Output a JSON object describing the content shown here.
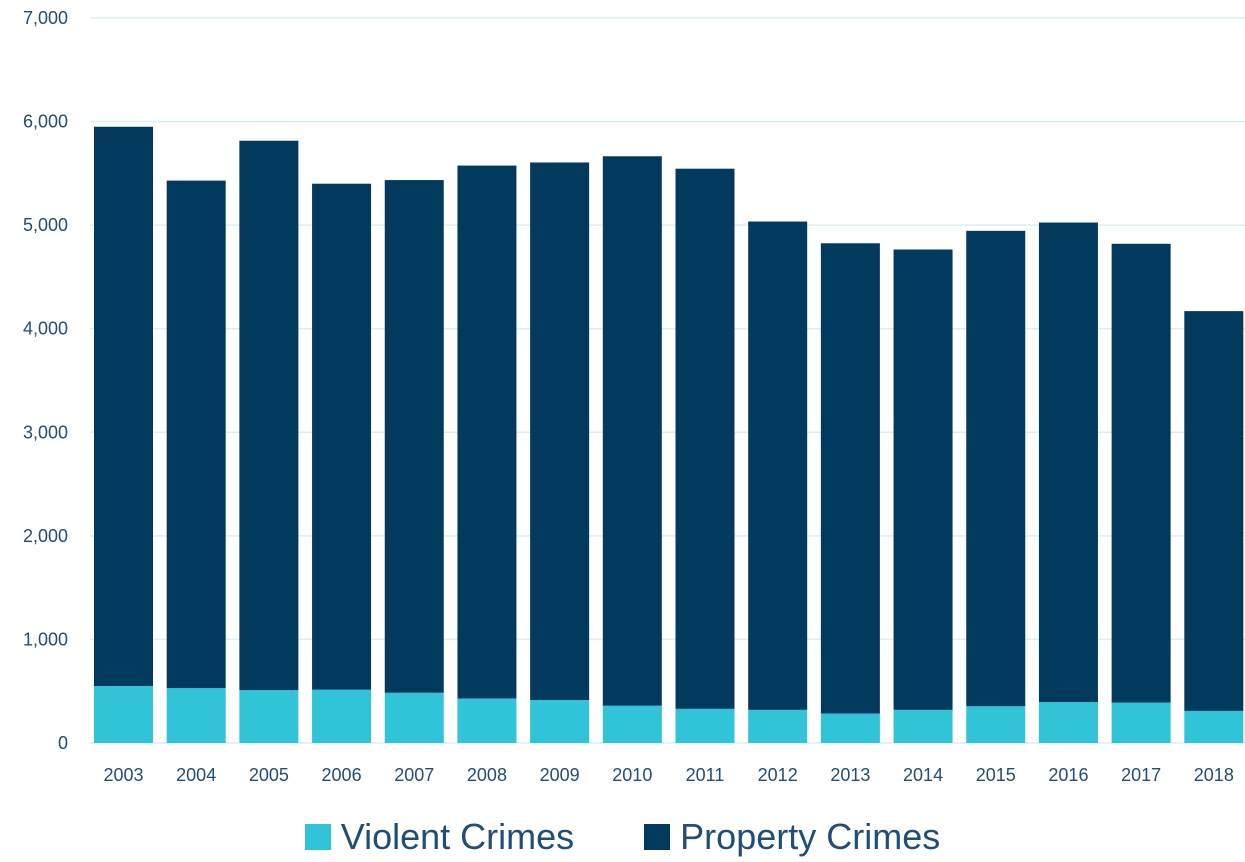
{
  "chart_data": {
    "type": "bar",
    "stacked": true,
    "categories": [
      "2003",
      "2004",
      "2005",
      "2006",
      "2007",
      "2008",
      "2009",
      "2010",
      "2011",
      "2012",
      "2013",
      "2014",
      "2015",
      "2016",
      "2017",
      "2018"
    ],
    "series": [
      {
        "name": "Violent Crimes",
        "color": "#31c3d7",
        "values": [
          550,
          530,
          510,
          515,
          485,
          430,
          415,
          360,
          330,
          320,
          285,
          320,
          355,
          395,
          390,
          310
        ]
      },
      {
        "name": "Property Crimes",
        "color": "#023a5e",
        "values": [
          5400,
          4900,
          5305,
          4885,
          4950,
          5145,
          5190,
          5305,
          5215,
          4715,
          4540,
          4445,
          4590,
          4630,
          4430,
          3860
        ]
      }
    ],
    "ylim": [
      0,
      7000
    ],
    "yticks": [
      0,
      1000,
      2000,
      3000,
      4000,
      5000,
      6000,
      7000
    ],
    "ytick_labels": [
      "0",
      "1,000",
      "2,000",
      "3,000",
      "4,000",
      "5,000",
      "6,000",
      "7,000"
    ],
    "grid": true,
    "gridline_color": "#dbeef4",
    "tick_color": "#1f4e79",
    "legend_position": "bottom",
    "title": "",
    "xlabel": "",
    "ylabel": ""
  }
}
